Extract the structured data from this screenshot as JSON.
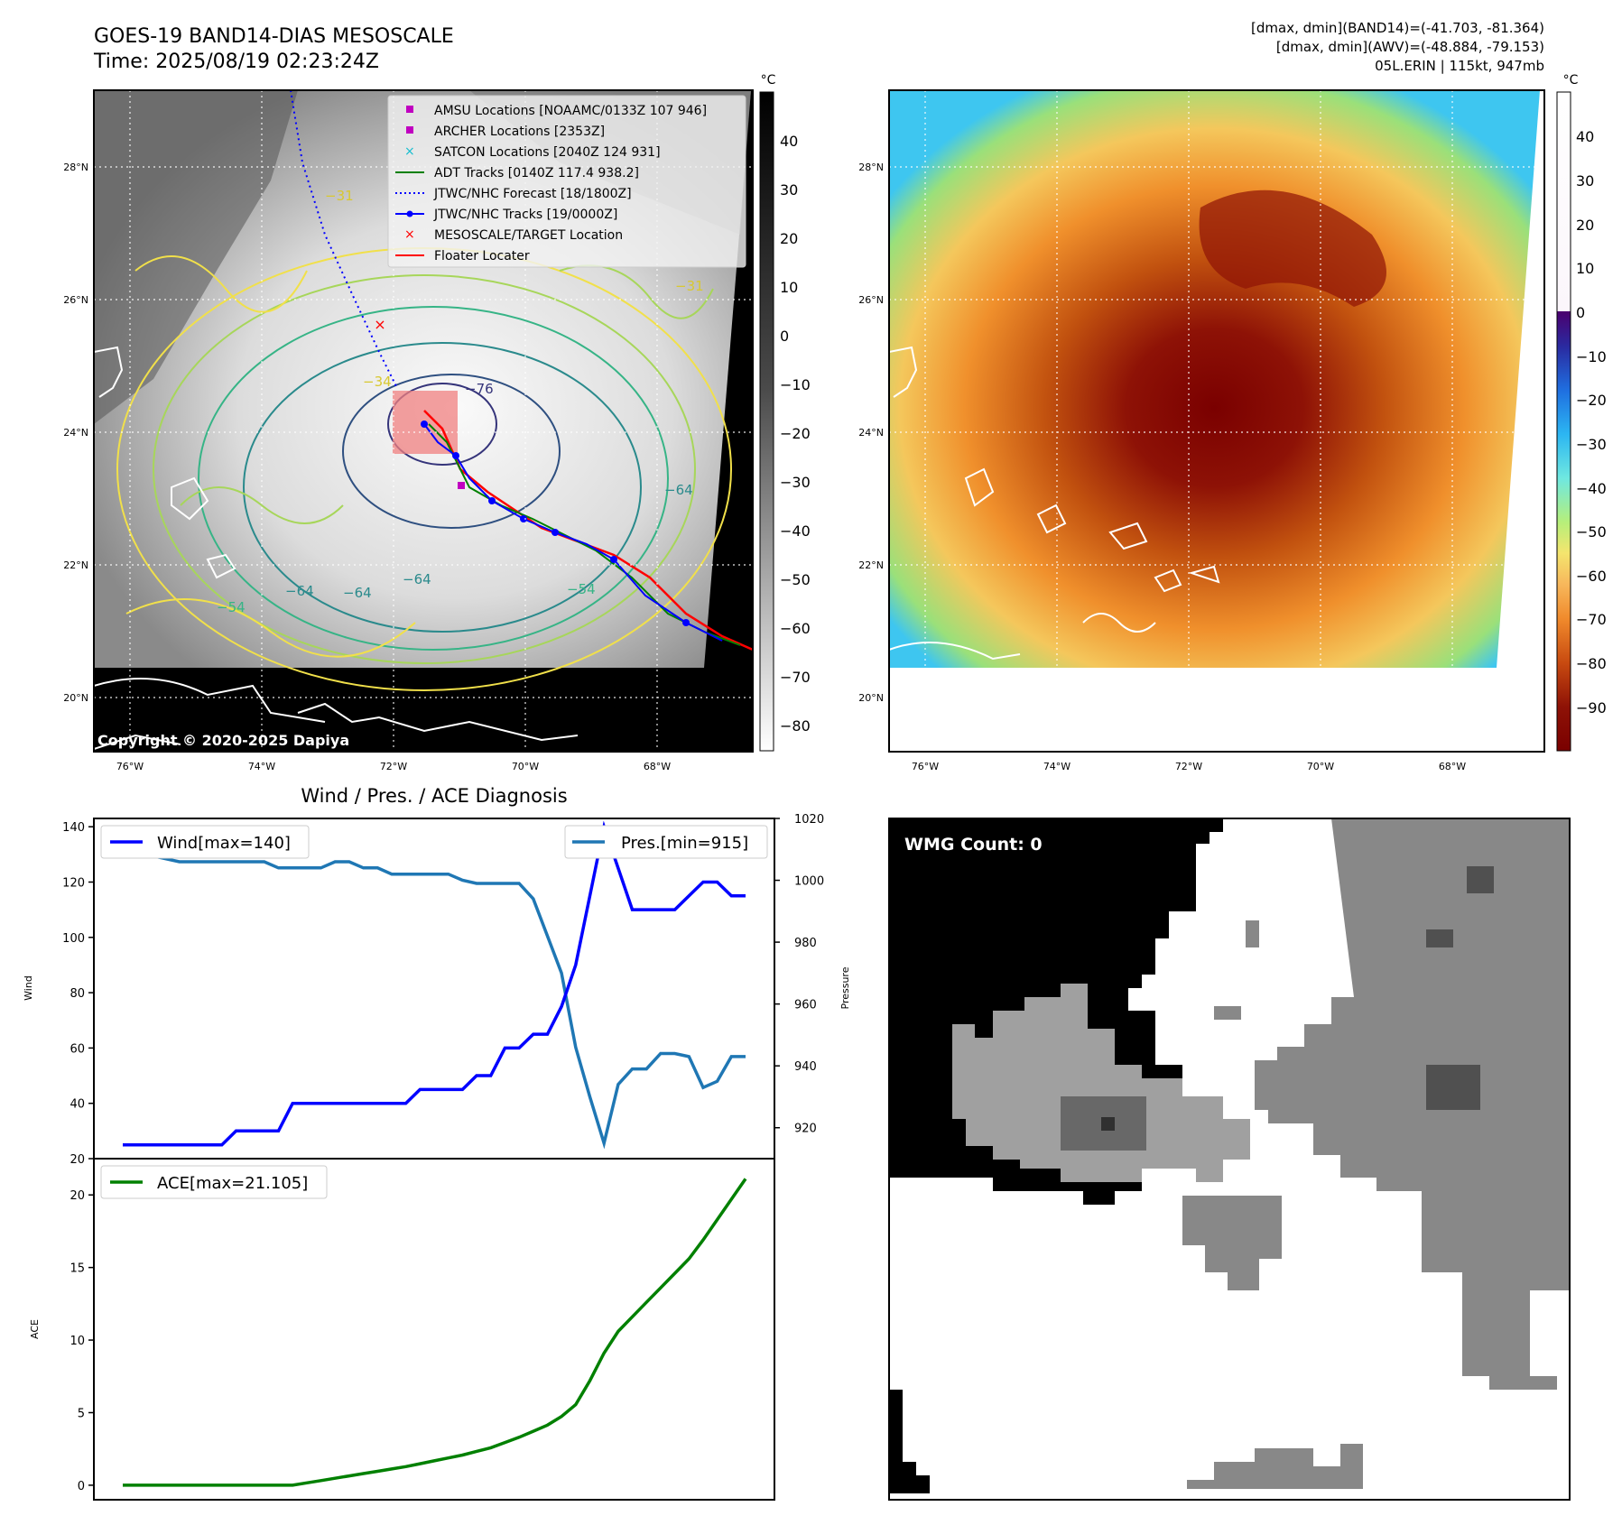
{
  "header": {
    "title_line1": "GOES-19 BAND14-DIAS MESOSCALE",
    "title_line2": "Time: 2025/08/19 02:23:24Z",
    "stats_line1": "[dmax, dmin](BAND14)=(-41.703, -81.364)",
    "stats_line2": "[dmax, dmin](AWV)=(-48.884, -79.153)",
    "stats_line3": "05L.ERIN | 115kt, 947mb"
  },
  "map_left": {
    "lat_labels": [
      "28°N",
      "26°N",
      "24°N",
      "22°N",
      "20°N"
    ],
    "lon_labels": [
      "76°W",
      "74°W",
      "72°W",
      "70°W",
      "68°W"
    ],
    "copyright": "Copyright © 2020-2025 Dapiya",
    "colorbar_unit": "°C",
    "colorbar_ticks": [
      "40",
      "30",
      "20",
      "10",
      "0",
      "−10",
      "−20",
      "−30",
      "−40",
      "−50",
      "−60",
      "−70",
      "−80"
    ],
    "contour_labels": [
      "−64",
      "−64",
      "−64",
      "−54",
      "−54",
      "−76",
      "−31",
      "−31",
      "−34",
      "−64"
    ],
    "legend": [
      {
        "label": "AMSU Locations [NOAAMC/0133Z 107 946]",
        "icon": "square-marker",
        "color": "#c000c0"
      },
      {
        "label": "ARCHER Locations [2353Z]",
        "icon": "square-marker",
        "color": "#c000c0"
      },
      {
        "label": "SATCON Locations [2040Z 124 931]",
        "icon": "x-marker",
        "color": "#17becf"
      },
      {
        "label": "ADT Tracks [0140Z 117.4 938.2]",
        "icon": "line",
        "color": "#008000"
      },
      {
        "label": "JTWC/NHC Forecast [18/1800Z]",
        "icon": "dotted-line",
        "color": "#0000ff"
      },
      {
        "label": "JTWC/NHC Tracks [19/0000Z]",
        "icon": "line-dot",
        "color": "#0000ff"
      },
      {
        "label": "MESOSCALE/TARGET Location",
        "icon": "x-marker",
        "color": "#ff0000"
      },
      {
        "label": "Floater Locater",
        "icon": "line",
        "color": "#ff0000"
      }
    ]
  },
  "map_right": {
    "lat_labels": [
      "28°N",
      "26°N",
      "24°N",
      "22°N",
      "20°N"
    ],
    "lon_labels": [
      "76°W",
      "74°W",
      "72°W",
      "70°W",
      "68°W"
    ],
    "colorbar_unit": "°C",
    "colorbar_ticks": [
      "40",
      "30",
      "20",
      "10",
      "0",
      "−10",
      "−20",
      "−30",
      "−40",
      "−50",
      "−60",
      "−70",
      "−80",
      "−90"
    ]
  },
  "diagnosis": {
    "title": "Wind / Pres. / ACE Diagnosis",
    "wind_legend": "Wind[max=140]",
    "pres_legend": "Pres.[min=915]",
    "ace_legend": "ACE[max=21.105]",
    "wind_axis_label": "Wind",
    "pres_axis_label": "Pressure",
    "ace_axis_label": "ACE",
    "wind_ticks": [
      "140",
      "120",
      "100",
      "80",
      "60",
      "40",
      "20"
    ],
    "pres_ticks": [
      "1020",
      "1000",
      "980",
      "960",
      "940",
      "920"
    ],
    "ace_ticks": [
      "20",
      "15",
      "10",
      "5",
      "0"
    ]
  },
  "wmg": {
    "label": "WMG Count: 0"
  },
  "colors": {
    "wind": "#0000ff",
    "pressure": "#1f77b4",
    "ace": "#008000"
  },
  "chart_data": [
    {
      "type": "line",
      "name": "wind-pressure",
      "x": [
        0,
        1,
        2,
        3,
        4,
        5,
        6,
        7,
        8,
        9,
        10,
        11,
        12,
        13,
        14,
        15,
        16,
        17,
        18,
        19,
        20,
        21,
        22,
        23,
        24,
        25,
        26,
        27,
        28,
        29,
        30,
        31,
        32,
        33,
        34,
        35,
        36,
        37,
        38,
        39,
        40,
        41,
        42,
        43,
        44
      ],
      "series": [
        {
          "name": "Wind[max=140]",
          "axis": "left",
          "values": [
            25,
            25,
            25,
            25,
            25,
            25,
            25,
            25,
            30,
            30,
            30,
            30,
            40,
            40,
            40,
            40,
            40,
            40,
            40,
            40,
            40,
            45,
            45,
            45,
            45,
            50,
            50,
            60,
            60,
            65,
            65,
            75,
            90,
            115,
            140,
            125,
            110,
            110,
            110,
            110,
            115,
            120,
            120,
            115,
            115
          ]
        },
        {
          "name": "Pres.[min=915]",
          "axis": "right",
          "values": [
            1012,
            1012,
            1008,
            1007,
            1006,
            1006,
            1006,
            1006,
            1006,
            1006,
            1006,
            1004,
            1004,
            1004,
            1004,
            1006,
            1006,
            1004,
            1004,
            1002,
            1002,
            1002,
            1002,
            1002,
            1000,
            999,
            999,
            999,
            999,
            994,
            982,
            970,
            946,
            930,
            915,
            934,
            939,
            939,
            944,
            944,
            943,
            933,
            935,
            943,
            943
          ]
        }
      ],
      "ylim_left": [
        20,
        143
      ],
      "ylim_right": [
        910,
        1020
      ]
    },
    {
      "type": "line",
      "name": "ace",
      "x": [
        0,
        1,
        2,
        3,
        4,
        5,
        6,
        7,
        8,
        9,
        10,
        11,
        12,
        13,
        14,
        15,
        16,
        17,
        18,
        19,
        20,
        21,
        22,
        23,
        24,
        25,
        26,
        27,
        28,
        29,
        30,
        31,
        32,
        33,
        34,
        35,
        36,
        37,
        38,
        39,
        40,
        41,
        42,
        43,
        44
      ],
      "series": [
        {
          "name": "ACE[max=21.105]",
          "values": [
            0,
            0,
            0,
            0,
            0,
            0,
            0,
            0,
            0,
            0,
            0,
            0,
            0,
            0.16,
            0.32,
            0.48,
            0.64,
            0.8,
            0.96,
            1.12,
            1.28,
            1.48,
            1.68,
            1.88,
            2.08,
            2.33,
            2.58,
            2.94,
            3.3,
            3.72,
            4.14,
            4.74,
            5.55,
            7.2,
            9.1,
            10.6,
            11.6,
            12.6,
            13.6,
            14.6,
            15.6,
            16.9,
            18.3,
            19.7,
            21.105
          ]
        }
      ],
      "ylim": [
        -1,
        22.5
      ]
    }
  ]
}
